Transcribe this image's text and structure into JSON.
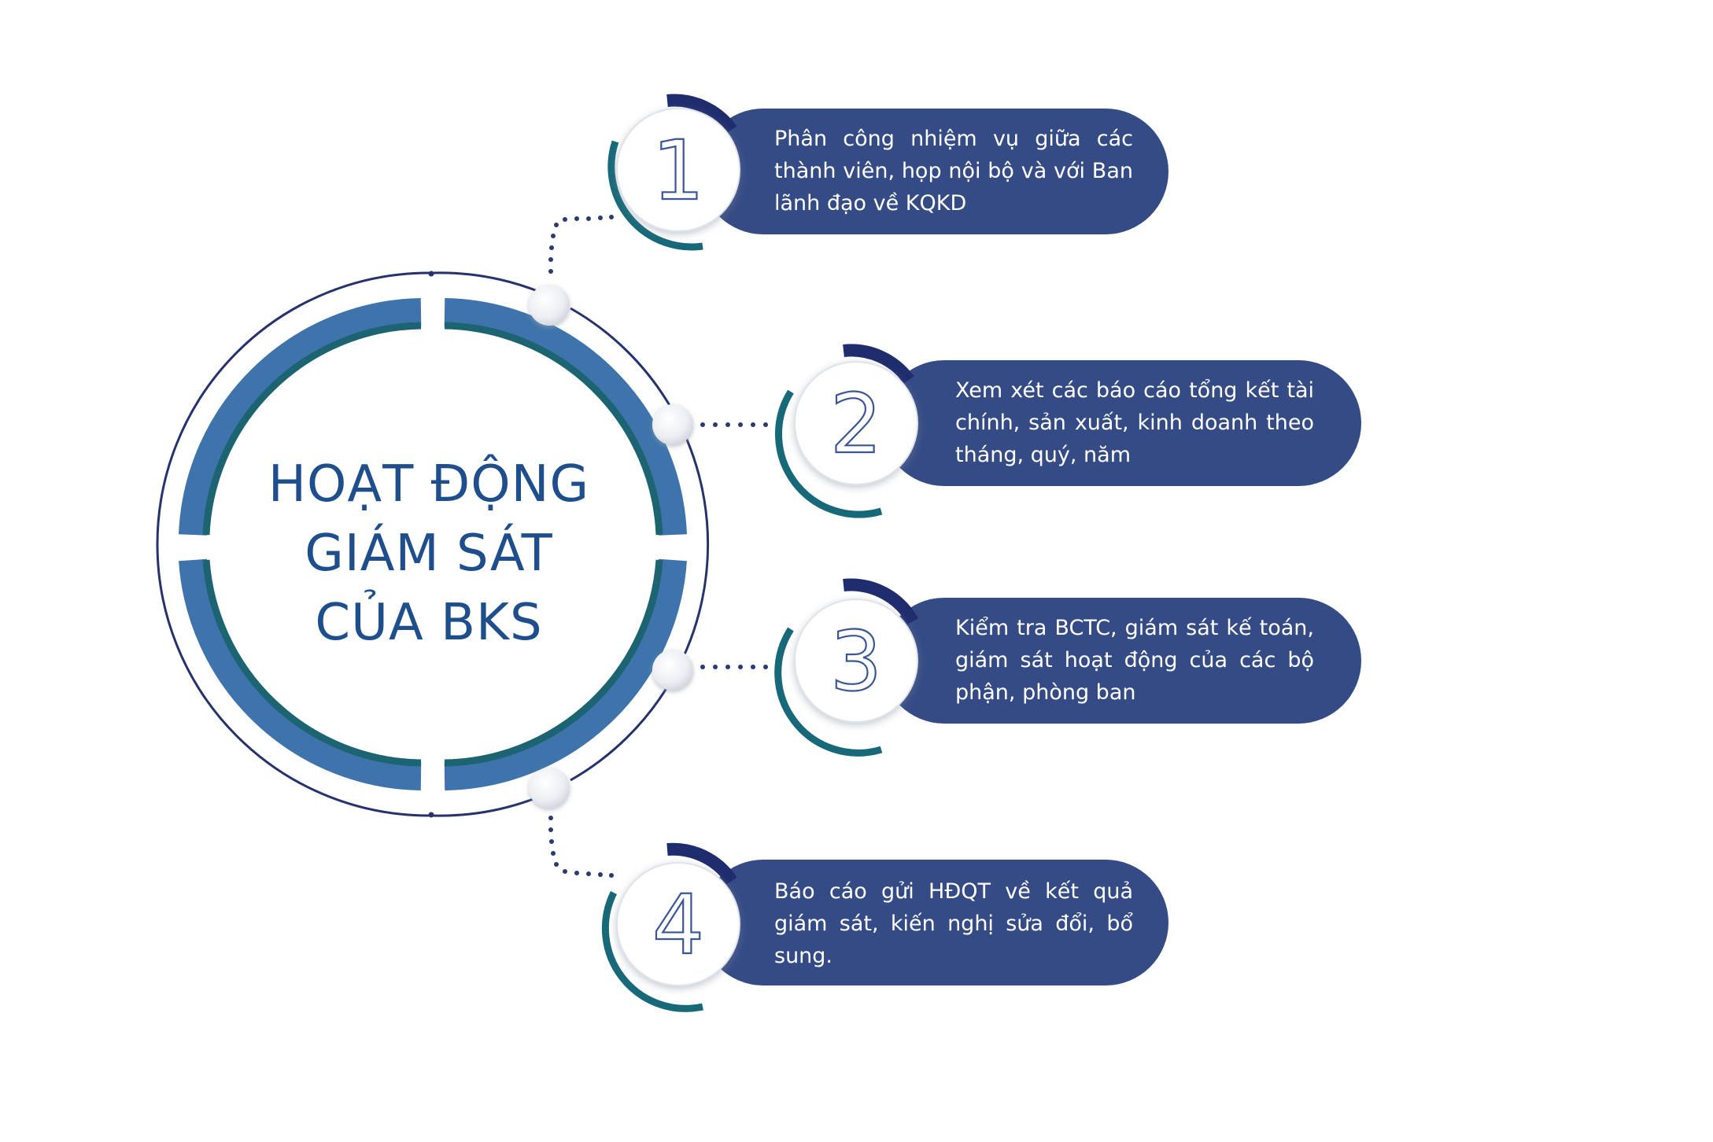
{
  "center": {
    "title_lines": [
      "HOẠT ĐỘNG",
      "GIÁM SÁT",
      "CỦA BKS"
    ]
  },
  "steps": [
    {
      "number": "1",
      "text": "Phân công nhiệm vụ giữa các thành viên, họp nội bộ và với Ban lãnh đạo về KQKD"
    },
    {
      "number": "2",
      "text": "Xem xét các báo cáo tổng kết tài chính, sản xuất, kinh doanh theo tháng, quý, năm"
    },
    {
      "number": "3",
      "text": "Kiểm tra BCTC, giám sát kế toán, giám sát hoạt động của các bộ phận, phòng ban"
    },
    {
      "number": "4",
      "text": "Báo cáo gửi HĐQT về kết quả giám sát, kiến nghị sửa đổi, bổ sung."
    }
  ],
  "colors": {
    "pill": "#354b85",
    "ring_outer": "#3e74ab",
    "ring_inner": "#1d6472",
    "arc_navy": "#1f2c6e",
    "arc_teal": "#17697a",
    "title": "#1f4e8c",
    "dots": "#2a3a73"
  }
}
